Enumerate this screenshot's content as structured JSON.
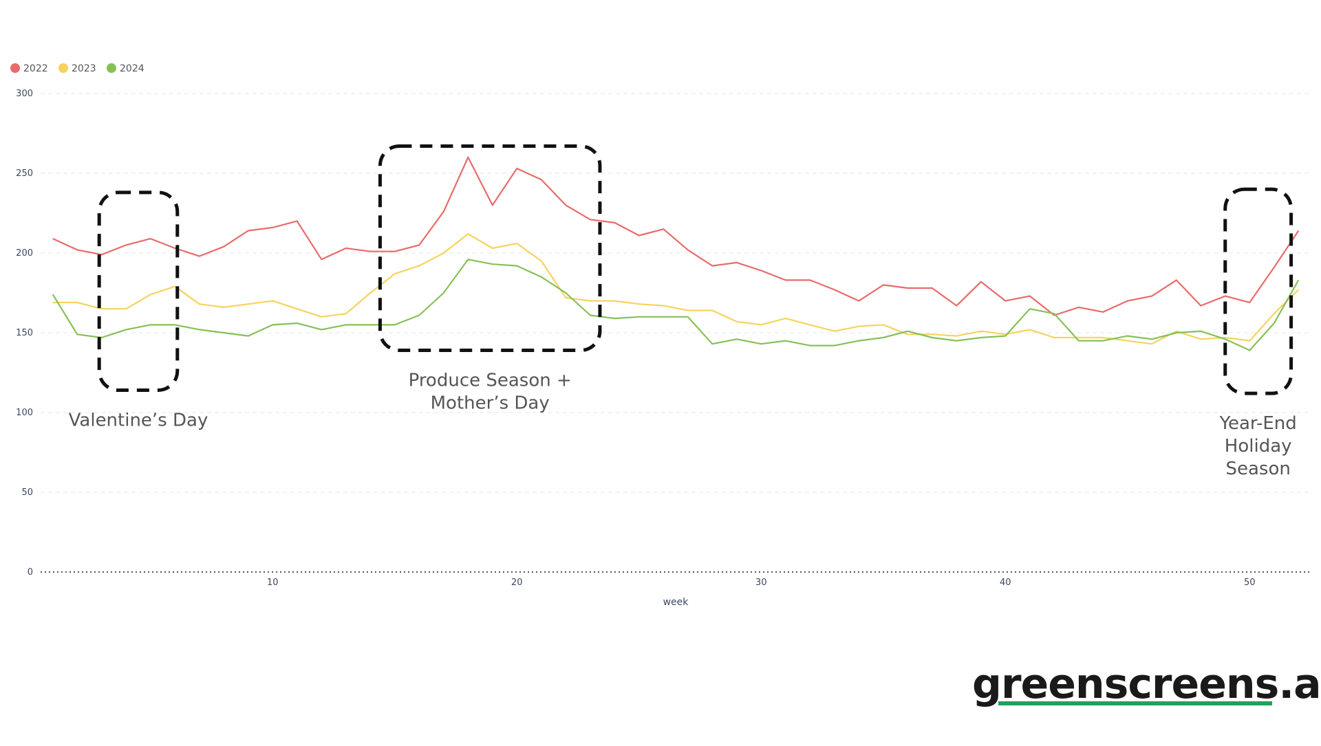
{
  "colors": {
    "s2022": "#e96a6a",
    "s2023": "#f7d35c",
    "s2024": "#86c057",
    "axis": "#3a4660",
    "brand_underline": "#1fa35b"
  },
  "chart_data": {
    "type": "line",
    "xlabel": "week",
    "ylabel": "",
    "xlim": [
      0.5,
      52.5
    ],
    "ylim": [
      0,
      300
    ],
    "xticks": [
      10,
      20,
      30,
      40,
      50
    ],
    "yticks": [
      0,
      50,
      100,
      150,
      200,
      250,
      300
    ],
    "grid": true,
    "legend_position": "top-left",
    "x": [
      1,
      2,
      3,
      4,
      5,
      6,
      7,
      8,
      9,
      10,
      11,
      12,
      13,
      14,
      15,
      16,
      17,
      18,
      19,
      20,
      21,
      22,
      23,
      24,
      25,
      26,
      27,
      28,
      29,
      30,
      31,
      32,
      33,
      34,
      35,
      36,
      37,
      38,
      39,
      40,
      41,
      42,
      43,
      44,
      45,
      46,
      47,
      48,
      49,
      50,
      51,
      52
    ],
    "series": [
      {
        "name": "2022",
        "color": "#e96a6a",
        "values": [
          209,
          202,
          199,
          205,
          209,
          203,
          198,
          204,
          214,
          216,
          220,
          196,
          203,
          201,
          201,
          205,
          226,
          260,
          230,
          253,
          246,
          230,
          221,
          219,
          211,
          215,
          202,
          192,
          194,
          189,
          183,
          183,
          177,
          170,
          180,
          178,
          178,
          167,
          182,
          170,
          173,
          161,
          166,
          163,
          170,
          173,
          183,
          167,
          173,
          169,
          191,
          214
        ]
      },
      {
        "name": "2023",
        "color": "#f7d35c",
        "values": [
          169,
          169,
          165,
          165,
          174,
          179,
          168,
          166,
          168,
          170,
          165,
          160,
          162,
          175,
          187,
          192,
          200,
          212,
          203,
          206,
          195,
          172,
          170,
          170,
          168,
          167,
          164,
          164,
          157,
          155,
          159,
          155,
          151,
          154,
          155,
          149,
          149,
          148,
          151,
          149,
          152,
          147,
          147,
          147,
          145,
          143,
          151,
          146,
          147,
          145,
          162,
          177
        ]
      },
      {
        "name": "2024",
        "color": "#86c057",
        "values": [
          174,
          149,
          147,
          152,
          155,
          155,
          152,
          150,
          148,
          155,
          156,
          152,
          155,
          155,
          155,
          161,
          175,
          196,
          193,
          192,
          185,
          175,
          161,
          159,
          160,
          160,
          160,
          143,
          146,
          143,
          145,
          142,
          142,
          145,
          147,
          151,
          147,
          145,
          147,
          148,
          165,
          162,
          145,
          145,
          148,
          146,
          150,
          151,
          146,
          139,
          156,
          183
        ]
      }
    ],
    "annotations": [
      {
        "label": "Valentine’s Day",
        "x_range": [
          2.9,
          6.1
        ],
        "y_range": [
          114,
          238
        ]
      },
      {
        "label": "Produce Season +\nMother’s Day",
        "x_range": [
          14.4,
          23.4
        ],
        "y_range": [
          139,
          267
        ]
      },
      {
        "label": "Year-End\nHoliday\nSeason",
        "x_range": [
          49.0,
          51.7
        ],
        "y_range": [
          112,
          240
        ]
      }
    ]
  },
  "brand": {
    "text": "greenscreens.ai"
  }
}
